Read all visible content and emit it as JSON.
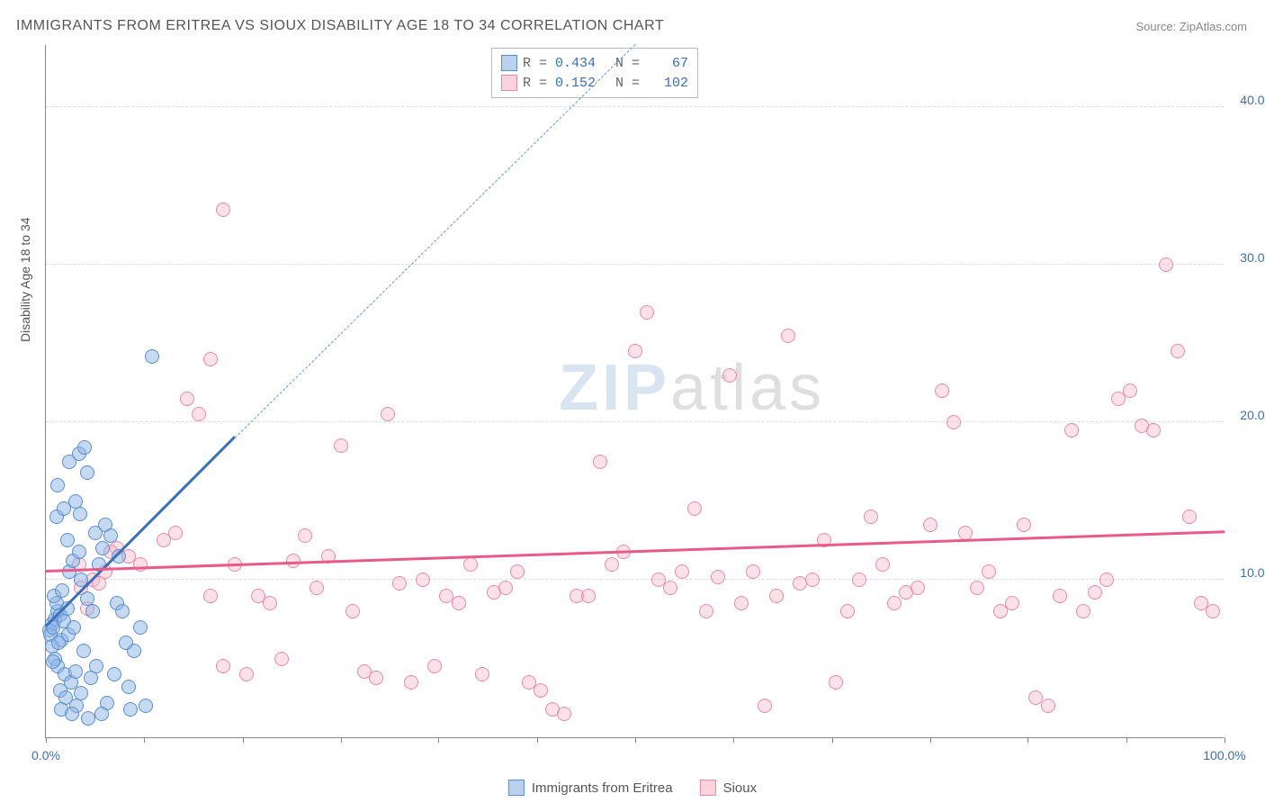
{
  "title": "IMMIGRANTS FROM ERITREA VS SIOUX DISABILITY AGE 18 TO 34 CORRELATION CHART",
  "source": "Source: ZipAtlas.com",
  "ylabel": "Disability Age 18 to 34",
  "watermark_zip": "ZIP",
  "watermark_atlas": "atlas",
  "chart": {
    "type": "scatter",
    "xlim": [
      0,
      100
    ],
    "ylim": [
      0,
      44
    ],
    "yticks": [
      10,
      20,
      30,
      40
    ],
    "ytick_labels": [
      "10.0%",
      "20.0%",
      "30.0%",
      "40.0%"
    ],
    "xtick_positions": [
      0,
      8.3,
      16.7,
      25,
      33.3,
      41.7,
      50,
      58.3,
      66.7,
      75,
      83.3,
      91.7,
      100
    ],
    "xtick_labels": {
      "0": "0.0%",
      "100": "100.0%"
    },
    "grid_color": "#dddddd",
    "axis_color": "#888888",
    "background": "#ffffff",
    "series": [
      {
        "name": "Immigrants from Eritrea",
        "color_fill": "rgba(140,180,230,0.5)",
        "color_stroke": "#5a8fd0",
        "r": 0.434,
        "n": 67,
        "trend": {
          "x1": 0,
          "y1": 7,
          "x2": 16,
          "y2": 19,
          "color": "#3b6fb6"
        },
        "trend_dash": {
          "x1": 16,
          "y1": 19,
          "x2": 50,
          "y2": 44,
          "color": "#6b95d0"
        },
        "points": [
          [
            0.3,
            6.8
          ],
          [
            0.5,
            7.2
          ],
          [
            0.8,
            7.5
          ],
          [
            1.0,
            8.0
          ],
          [
            1.2,
            7.8
          ],
          [
            0.4,
            6.5
          ],
          [
            0.6,
            7.0
          ],
          [
            0.9,
            8.5
          ],
          [
            1.3,
            6.2
          ],
          [
            0.7,
            9.0
          ],
          [
            1.5,
            7.4
          ],
          [
            1.8,
            8.2
          ],
          [
            0.5,
            5.8
          ],
          [
            1.1,
            6.0
          ],
          [
            1.4,
            9.3
          ],
          [
            2.0,
            10.5
          ],
          [
            2.3,
            11.2
          ],
          [
            2.8,
            11.8
          ],
          [
            3.0,
            10.0
          ],
          [
            0.8,
            5.0
          ],
          [
            1.0,
            4.5
          ],
          [
            1.6,
            4.0
          ],
          [
            2.1,
            3.5
          ],
          [
            1.2,
            3.0
          ],
          [
            2.5,
            4.2
          ],
          [
            3.2,
            5.5
          ],
          [
            0.6,
            4.8
          ],
          [
            1.9,
            6.5
          ],
          [
            2.4,
            7.0
          ],
          [
            3.5,
            8.8
          ],
          [
            1.7,
            2.5
          ],
          [
            2.6,
            2.0
          ],
          [
            3.8,
            3.8
          ],
          [
            4.0,
            8.0
          ],
          [
            4.5,
            11.0
          ],
          [
            1.3,
            1.8
          ],
          [
            2.2,
            1.5
          ],
          [
            3.0,
            2.8
          ],
          [
            4.2,
            13.0
          ],
          [
            5.0,
            13.5
          ],
          [
            0.9,
            14.0
          ],
          [
            1.5,
            14.5
          ],
          [
            2.0,
            17.5
          ],
          [
            2.8,
            18.0
          ],
          [
            3.3,
            18.4
          ],
          [
            4.8,
            12.0
          ],
          [
            5.5,
            12.8
          ],
          [
            6.0,
            8.5
          ],
          [
            6.5,
            8.0
          ],
          [
            7.0,
            3.2
          ],
          [
            7.5,
            5.5
          ],
          [
            8.0,
            7.0
          ],
          [
            3.5,
            16.8
          ],
          [
            1.0,
            16.0
          ],
          [
            5.8,
            4.0
          ],
          [
            4.3,
            4.5
          ],
          [
            6.8,
            6.0
          ],
          [
            5.2,
            2.2
          ],
          [
            4.7,
            1.5
          ],
          [
            3.6,
            1.2
          ],
          [
            2.9,
            14.2
          ],
          [
            1.8,
            12.5
          ],
          [
            6.2,
            11.5
          ],
          [
            7.2,
            1.8
          ],
          [
            8.5,
            2.0
          ],
          [
            9.0,
            24.2
          ],
          [
            2.5,
            15.0
          ]
        ]
      },
      {
        "name": "Sioux",
        "color_fill": "rgba(250,180,200,0.4)",
        "color_stroke": "#e88ba5",
        "r": 0.152,
        "n": 102,
        "trend": {
          "x1": 0,
          "y1": 10.5,
          "x2": 100,
          "y2": 13.0,
          "color": "#e85a8a"
        },
        "points": [
          [
            3,
            9.5
          ],
          [
            4,
            10
          ],
          [
            5,
            10.5
          ],
          [
            6,
            12
          ],
          [
            7,
            11.5
          ],
          [
            8,
            11
          ],
          [
            10,
            12.5
          ],
          [
            11,
            13
          ],
          [
            12,
            21.5
          ],
          [
            13,
            20.5
          ],
          [
            14,
            24.0
          ],
          [
            15,
            4.5
          ],
          [
            17,
            4.0
          ],
          [
            18,
            9.0
          ],
          [
            19,
            8.5
          ],
          [
            20,
            5.0
          ],
          [
            21,
            11.2
          ],
          [
            22,
            12.8
          ],
          [
            23,
            9.5
          ],
          [
            25,
            18.5
          ],
          [
            26,
            8.0
          ],
          [
            27,
            4.2
          ],
          [
            28,
            3.8
          ],
          [
            29,
            20.5
          ],
          [
            30,
            9.8
          ],
          [
            31,
            3.5
          ],
          [
            32,
            10.0
          ],
          [
            33,
            4.5
          ],
          [
            35,
            8.5
          ],
          [
            36,
            11.0
          ],
          [
            37,
            4.0
          ],
          [
            38,
            9.2
          ],
          [
            40,
            10.5
          ],
          [
            41,
            3.5
          ],
          [
            42,
            3.0
          ],
          [
            43,
            1.8
          ],
          [
            44,
            1.5
          ],
          [
            45,
            9.0
          ],
          [
            47,
            17.5
          ],
          [
            48,
            11.0
          ],
          [
            49,
            11.8
          ],
          [
            50,
            24.5
          ],
          [
            51,
            27.0
          ],
          [
            52,
            10.0
          ],
          [
            53,
            9.5
          ],
          [
            55,
            14.5
          ],
          [
            56,
            8.0
          ],
          [
            57,
            10.2
          ],
          [
            58,
            23.0
          ],
          [
            59,
            8.5
          ],
          [
            60,
            10.5
          ],
          [
            61,
            2.0
          ],
          [
            62,
            9.0
          ],
          [
            63,
            25.5
          ],
          [
            64,
            9.8
          ],
          [
            65,
            10.0
          ],
          [
            66,
            12.5
          ],
          [
            67,
            3.5
          ],
          [
            68,
            8.0
          ],
          [
            70,
            14.0
          ],
          [
            71,
            11.0
          ],
          [
            72,
            8.5
          ],
          [
            73,
            9.2
          ],
          [
            75,
            13.5
          ],
          [
            76,
            22.0
          ],
          [
            77,
            20.0
          ],
          [
            78,
            13.0
          ],
          [
            79,
            9.5
          ],
          [
            80,
            10.5
          ],
          [
            81,
            8.0
          ],
          [
            82,
            8.5
          ],
          [
            83,
            13.5
          ],
          [
            84,
            2.5
          ],
          [
            85,
            2.0
          ],
          [
            86,
            9.0
          ],
          [
            87,
            19.5
          ],
          [
            88,
            8.0
          ],
          [
            89,
            9.2
          ],
          [
            90,
            10.0
          ],
          [
            91,
            21.5
          ],
          [
            92,
            22.0
          ],
          [
            93,
            19.8
          ],
          [
            94,
            19.5
          ],
          [
            95,
            30.0
          ],
          [
            96,
            24.5
          ],
          [
            97,
            14.0
          ],
          [
            98,
            8.5
          ],
          [
            99,
            8.0
          ],
          [
            15,
            33.5
          ],
          [
            14,
            9.0
          ],
          [
            16,
            11.0
          ],
          [
            24,
            11.5
          ],
          [
            34,
            9.0
          ],
          [
            39,
            9.5
          ],
          [
            46,
            9.0
          ],
          [
            54,
            10.5
          ],
          [
            69,
            10.0
          ],
          [
            74,
            9.5
          ],
          [
            3.5,
            8.2
          ],
          [
            4.5,
            9.8
          ],
          [
            2.8,
            11.0
          ],
          [
            5.5,
            11.8
          ]
        ]
      }
    ]
  },
  "stats_labels": {
    "r": "R =",
    "n": "N ="
  },
  "legend": [
    {
      "swatch": "blue",
      "label": "Immigrants from Eritrea"
    },
    {
      "swatch": "pink",
      "label": "Sioux"
    }
  ]
}
